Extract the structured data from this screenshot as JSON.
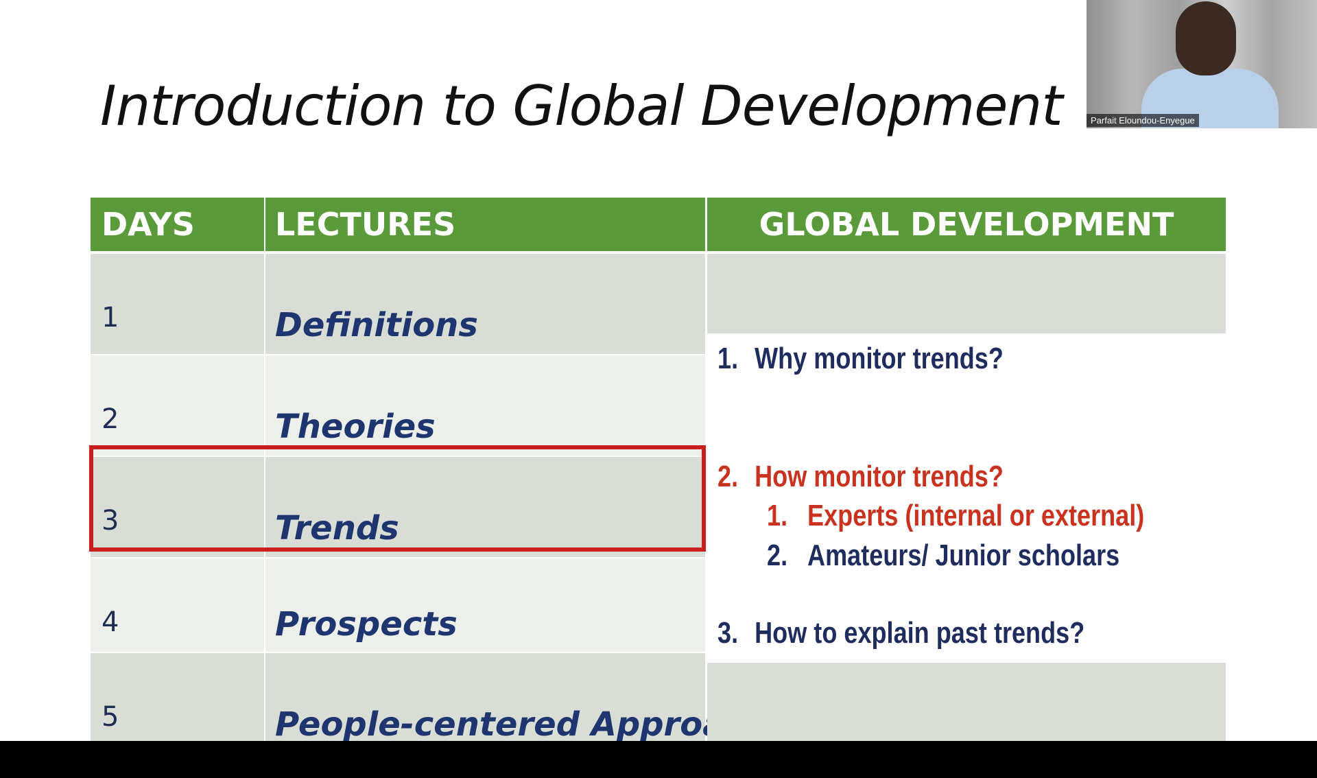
{
  "slide": {
    "title": "Introduction to Global Development",
    "headers": {
      "days": "DAYS",
      "lectures": "LECTURES",
      "global": "GLOBAL DEVELOPMENT"
    },
    "rows": [
      {
        "day": "1",
        "lecture": "Definitions"
      },
      {
        "day": "2",
        "lecture": "Theories"
      },
      {
        "day": "3",
        "lecture": "Trends"
      },
      {
        "day": "4",
        "lecture": "Prospects"
      },
      {
        "day": "5",
        "lecture": "People-centered Approach"
      }
    ],
    "global_development": {
      "item1": {
        "num": "1.",
        "text": "Why monitor trends?"
      },
      "item2": {
        "num": "2.",
        "text": "How monitor trends?"
      },
      "item2_sub1": {
        "num": "1.",
        "text": "Experts (internal or external)"
      },
      "item2_sub2": {
        "num": "2.",
        "text": "Amateurs/ Junior scholars"
      },
      "item3": {
        "num": "3.",
        "text": "How to explain past trends?"
      }
    },
    "highlighted_day": "3",
    "colors": {
      "header_green": "#5b9a3a",
      "highlight_red": "#c81e1e",
      "navy_text": "#1f2d5e",
      "red_text": "#c8321e"
    }
  },
  "video": {
    "participant_name": "Parfait Eloundou-Enyegue"
  }
}
